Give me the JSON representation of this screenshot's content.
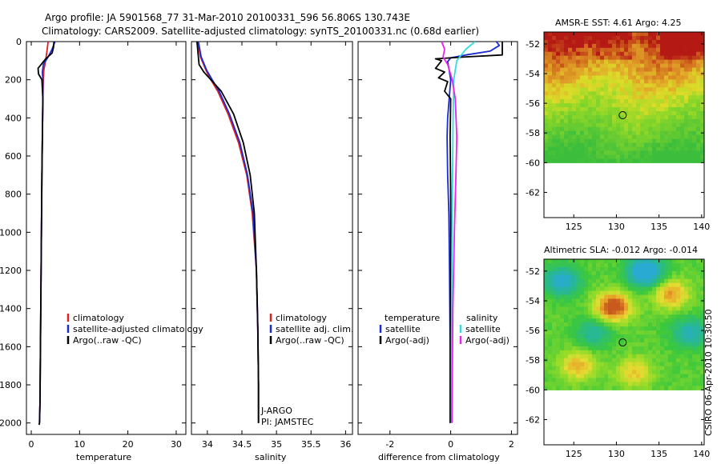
{
  "header": {
    "line1": "Argo profile: JA 5901568_77 31-Mar-2010 20100331_596 56.806S 130.743E",
    "line2": "Climatology: CARS2009. Satellite-adjusted climatology: synTS_20100331.nc (0.68d earlier)"
  },
  "credit": "CSIRO 06-Apr-2010 10:30:50",
  "colors": {
    "climatology": "#dd2222",
    "satellite": "#1a2bd6",
    "argo": "#000000",
    "sal_satellite": "#33dddd",
    "sal_argo": "#ee22ee"
  },
  "chart_data": [
    {
      "type": "line",
      "id": "temperature",
      "xlabel": "temperature",
      "xlim": [
        -1,
        32
      ],
      "ylim": [
        2060,
        0
      ],
      "xticks": [
        0,
        10,
        20,
        30
      ],
      "yticks": [
        0,
        200,
        400,
        600,
        800,
        1000,
        1200,
        1400,
        1600,
        1800,
        2000
      ],
      "legend": [
        "climatology",
        "satellite-adjusted climatology",
        "Argo(..raw -QC)"
      ],
      "series": [
        {
          "name": "climatology",
          "color": "#dd2222",
          "x": [
            3.5,
            3.2,
            2.9,
            2.6,
            2.5,
            2.4,
            2.3,
            2.2,
            2.1,
            2.0,
            1.9,
            1.8,
            1.7
          ],
          "y": [
            0,
            60,
            110,
            150,
            200,
            300,
            500,
            700,
            1000,
            1300,
            1600,
            1900,
            2000
          ]
        },
        {
          "name": "satellite-adjusted climatology",
          "color": "#1a2bd6",
          "x": [
            4.9,
            4.3,
            3.5,
            2.5,
            2.3,
            2.4,
            2.4,
            2.3,
            2.2,
            2.1,
            2.0,
            1.9,
            1.8,
            1.7
          ],
          "y": [
            0,
            40,
            80,
            120,
            160,
            200,
            300,
            500,
            700,
            1000,
            1300,
            1600,
            1900,
            2000
          ]
        },
        {
          "name": "Argo(..raw -QC)",
          "color": "#000000",
          "x": [
            4.7,
            4.6,
            4.3,
            3.0,
            1.4,
            1.5,
            2.2,
            2.4,
            2.3,
            2.2,
            2.1,
            2.0,
            1.9,
            1.8,
            1.7,
            1.6
          ],
          "y": [
            0,
            30,
            60,
            90,
            140,
            170,
            200,
            300,
            500,
            700,
            1000,
            1300,
            1600,
            1900,
            2000,
            2010
          ]
        }
      ]
    },
    {
      "type": "line",
      "id": "salinity",
      "xlabel": "salinity",
      "xlim": [
        33.77,
        36.1
      ],
      "ylim": [
        2060,
        0
      ],
      "xticks": [
        34,
        34.5,
        35,
        35.5,
        36
      ],
      "xticklabels": [
        "34",
        "34.5",
        "35",
        "35.5",
        "36"
      ],
      "legend": [
        "climatology",
        "satellite adj. clim.",
        "Argo(..raw -QC)"
      ],
      "annotation": [
        "J-ARGO",
        "PI: JAMSTEC"
      ],
      "series": [
        {
          "name": "climatology",
          "color": "#dd2222",
          "x": [
            33.86,
            33.9,
            33.98,
            34.05,
            34.15,
            34.3,
            34.45,
            34.57,
            34.65,
            34.71,
            34.73,
            34.74,
            34.74
          ],
          "y": [
            0,
            80,
            150,
            200,
            260,
            380,
            530,
            700,
            900,
            1200,
            1500,
            1800,
            2000
          ]
        },
        {
          "name": "satellite adj. clim.",
          "color": "#1a2bd6",
          "x": [
            33.87,
            33.91,
            33.99,
            34.07,
            34.17,
            34.32,
            34.47,
            34.58,
            34.66,
            34.71,
            34.73,
            34.74,
            34.74
          ],
          "y": [
            0,
            80,
            150,
            200,
            260,
            380,
            530,
            700,
            900,
            1200,
            1500,
            1800,
            2000
          ]
        },
        {
          "name": "Argo(..raw -QC)",
          "color": "#000000",
          "x": [
            33.85,
            33.87,
            33.88,
            33.95,
            34.05,
            34.2,
            34.38,
            34.52,
            34.62,
            34.68,
            34.71,
            34.73,
            34.74,
            34.74
          ],
          "y": [
            0,
            80,
            120,
            160,
            200,
            260,
            380,
            530,
            700,
            900,
            1200,
            1500,
            1800,
            2000
          ]
        }
      ]
    },
    {
      "type": "line",
      "id": "difference",
      "xlabel": "difference from climatology",
      "xlim": [
        -3.05,
        2.2
      ],
      "ylim": [
        2060,
        0
      ],
      "xticks": [
        -2,
        0,
        2
      ],
      "legend_left": [
        "temperature",
        "satellite",
        "Argo(-adj)"
      ],
      "legend_right": [
        "salinity",
        "satellite",
        "Argo(-adj)"
      ],
      "series": [
        {
          "name": "temperature satellite",
          "color": "#1a2bd6",
          "x": [
            1.5,
            1.6,
            1.3,
            0.5,
            0.0,
            -0.1,
            -0.05,
            0.0,
            -0.05,
            -0.1,
            -0.12,
            -0.1,
            -0.06,
            -0.04,
            -0.02,
            -0.02
          ],
          "y": [
            0,
            20,
            50,
            70,
            85,
            105,
            150,
            200,
            300,
            400,
            500,
            700,
            900,
            1200,
            1600,
            2000
          ]
        },
        {
          "name": "temperature Argo(-adj)",
          "color": "#000000",
          "x": [
            1.7,
            1.7,
            0.5,
            -0.5,
            -0.3,
            -0.5,
            -0.2,
            -0.4,
            -0.1,
            -0.2,
            0.0,
            -0.02,
            0.0,
            0.0,
            -0.02,
            -0.02
          ],
          "y": [
            0,
            70,
            80,
            90,
            100,
            140,
            160,
            190,
            210,
            260,
            300,
            500,
            800,
            1200,
            1600,
            2000
          ]
        },
        {
          "name": "salinity satellite",
          "color": "#33dddd",
          "x": [
            0.8,
            0.5,
            0.2,
            0.1,
            0.08,
            0.06,
            0.04,
            0.03,
            0.03
          ],
          "y": [
            0,
            40,
            100,
            200,
            400,
            700,
            1100,
            1500,
            2000
          ]
        },
        {
          "name": "salinity Argo(-adj)",
          "color": "#ee22ee",
          "x": [
            -0.3,
            -0.2,
            -0.25,
            -0.1,
            0.05,
            0.15,
            0.2,
            0.17,
            0.12,
            0.07,
            0.04
          ],
          "y": [
            0,
            40,
            80,
            120,
            200,
            300,
            500,
            700,
            1000,
            1400,
            2000
          ]
        }
      ]
    },
    {
      "type": "heatmap",
      "id": "sst_map",
      "title": "AMSR-E SST: 4.61 Argo: 4.25",
      "xlim": [
        121.5,
        140.3
      ],
      "ylim": [
        -63.7,
        -51.2
      ],
      "xticks": [
        125,
        130,
        135,
        140
      ],
      "yticks": [
        -52,
        -54,
        -56,
        -58,
        -60,
        -62
      ],
      "data_lat_min": -60,
      "marker": {
        "lon": 130.743,
        "lat": -56.806
      }
    },
    {
      "type": "heatmap",
      "id": "sla_map",
      "title": "Altimetric SLA: -0.012 Argo: -0.014",
      "xlim": [
        121.5,
        140.3
      ],
      "ylim": [
        -63.7,
        -51.2
      ],
      "xticks": [
        125,
        130,
        135,
        140
      ],
      "yticks": [
        -52,
        -54,
        -56,
        -58,
        -60,
        -62
      ],
      "data_lat_min": -60,
      "marker": {
        "lon": 130.743,
        "lat": -56.806
      }
    }
  ]
}
